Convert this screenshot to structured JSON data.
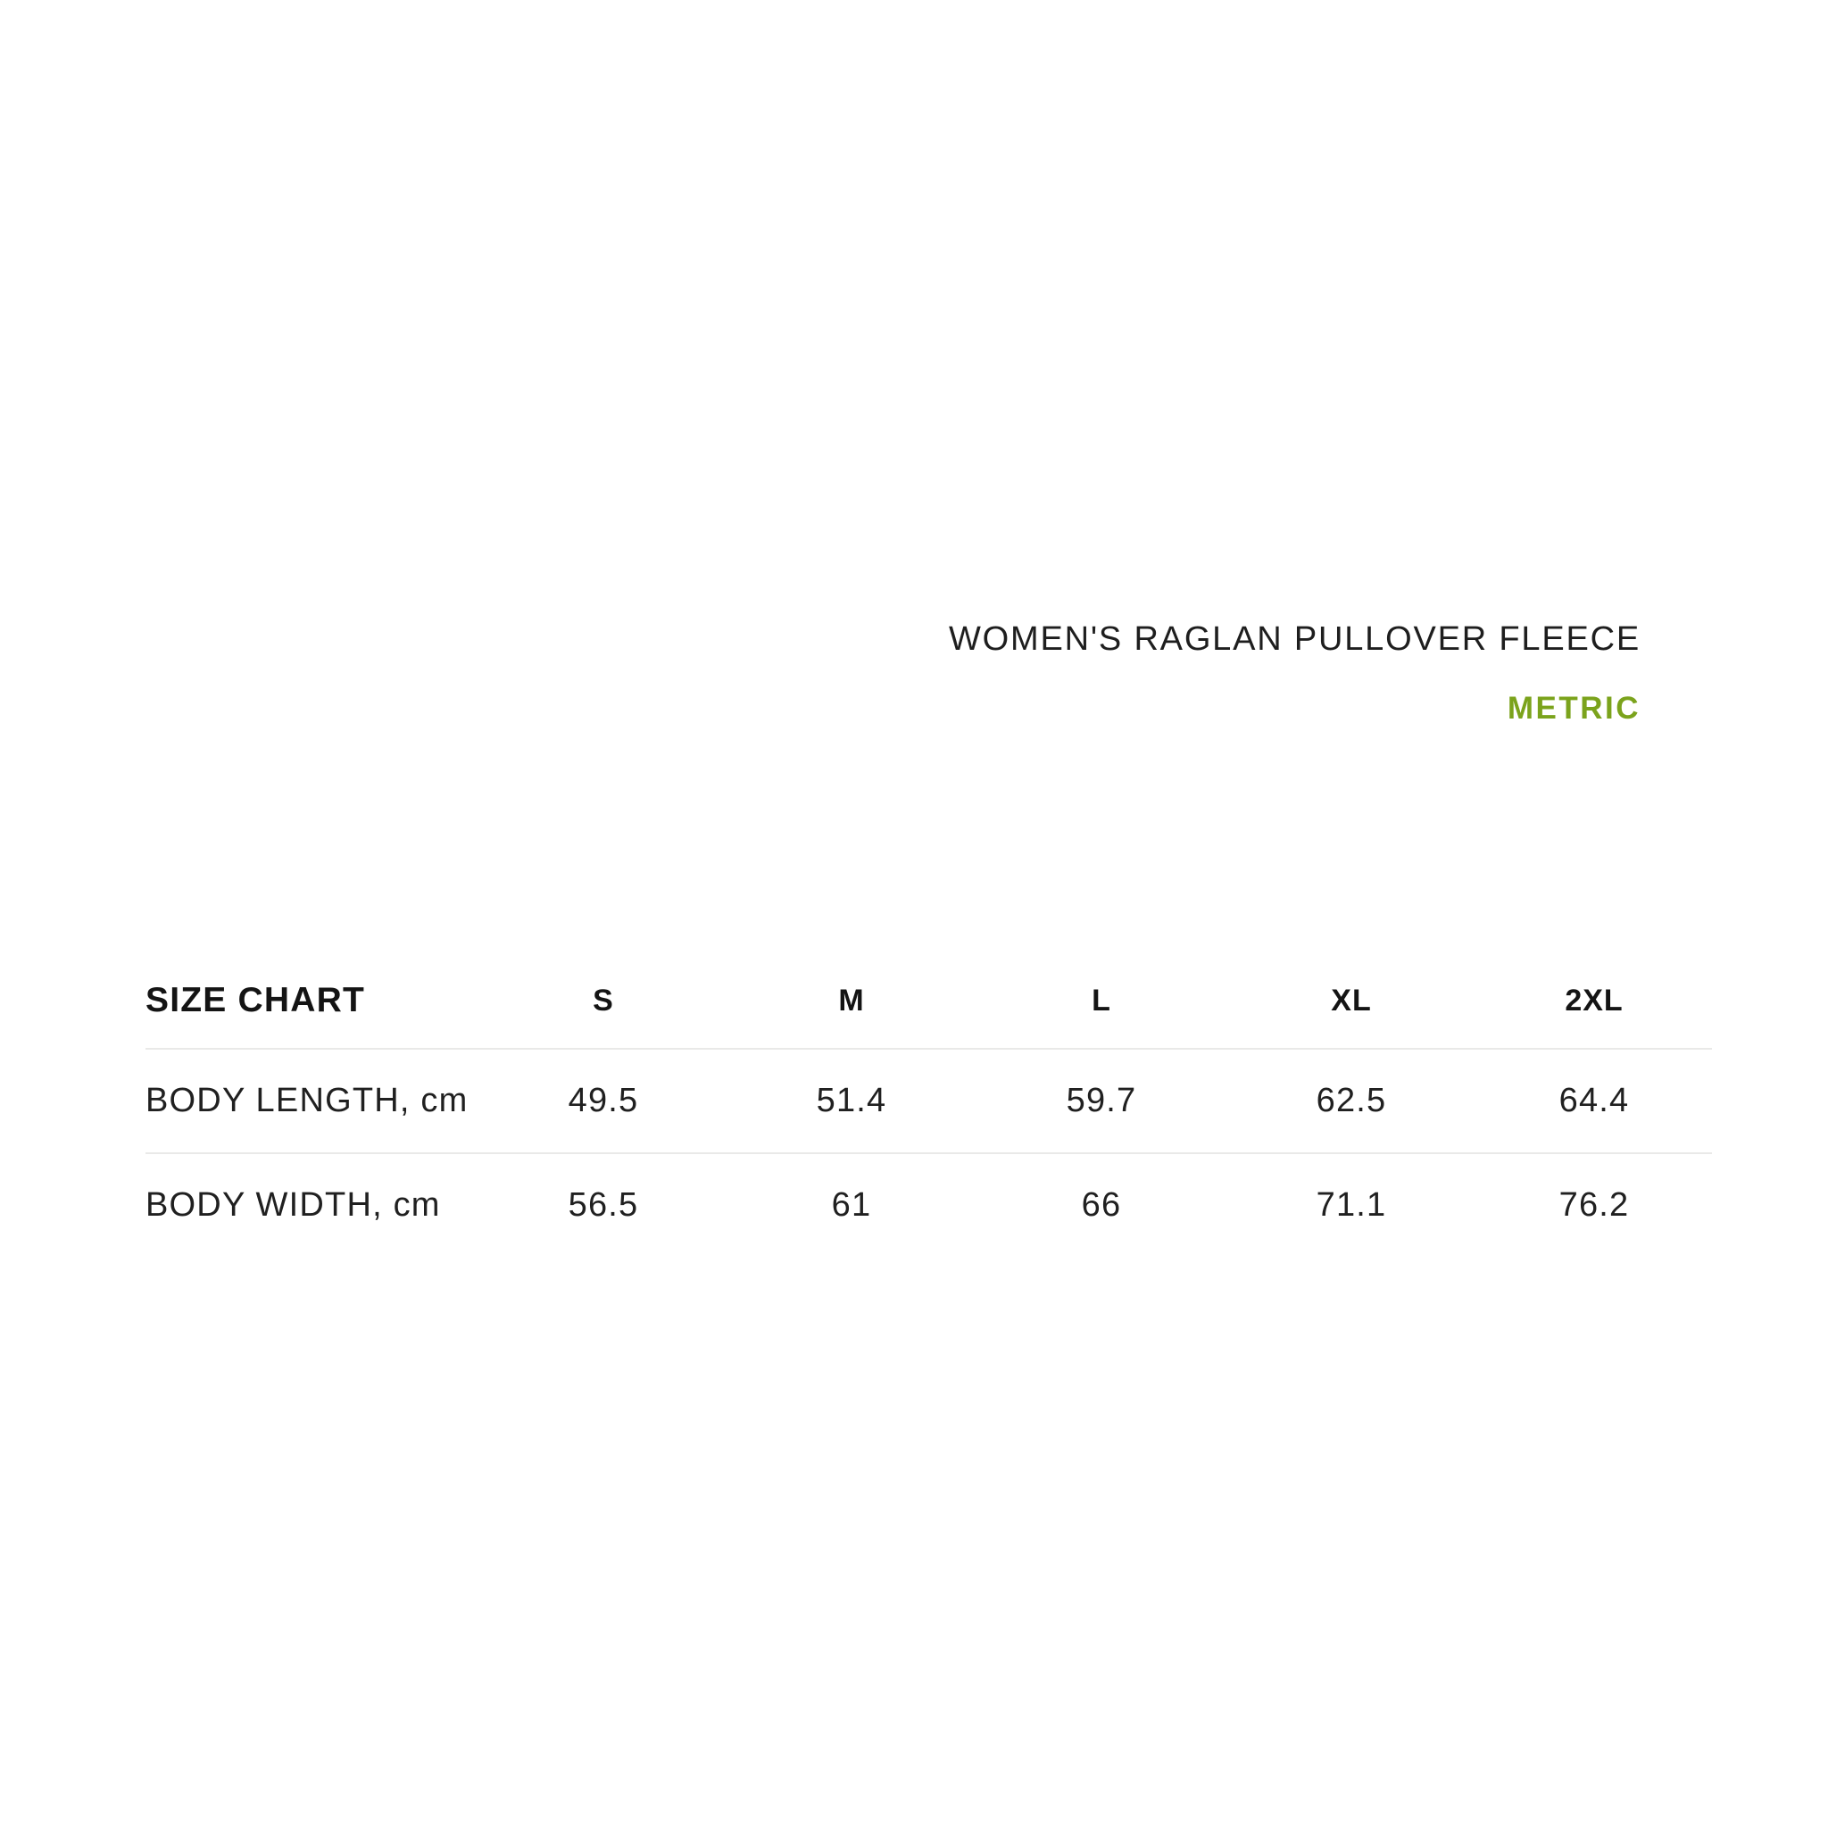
{
  "title": "WOMEN'S RAGLAN PULLOVER FLEECE",
  "unit_toggle_label": "METRIC",
  "colors": {
    "accent_green": "#7BA31C",
    "text": "#1E1E1E",
    "divider": "#E9E9E8",
    "background": "#FFFFFF"
  },
  "size_chart": {
    "corner_label": "SIZE CHART",
    "sizes": [
      "S",
      "M",
      "L",
      "XL",
      "2XL"
    ],
    "rows": [
      {
        "label": "BODY LENGTH, cm",
        "values": [
          "49.5",
          "51.4",
          "59.7",
          "62.5",
          "64.4"
        ]
      },
      {
        "label": "BODY WIDTH, cm",
        "values": [
          "56.5",
          "61",
          "66",
          "71.1",
          "76.2"
        ]
      }
    ]
  }
}
